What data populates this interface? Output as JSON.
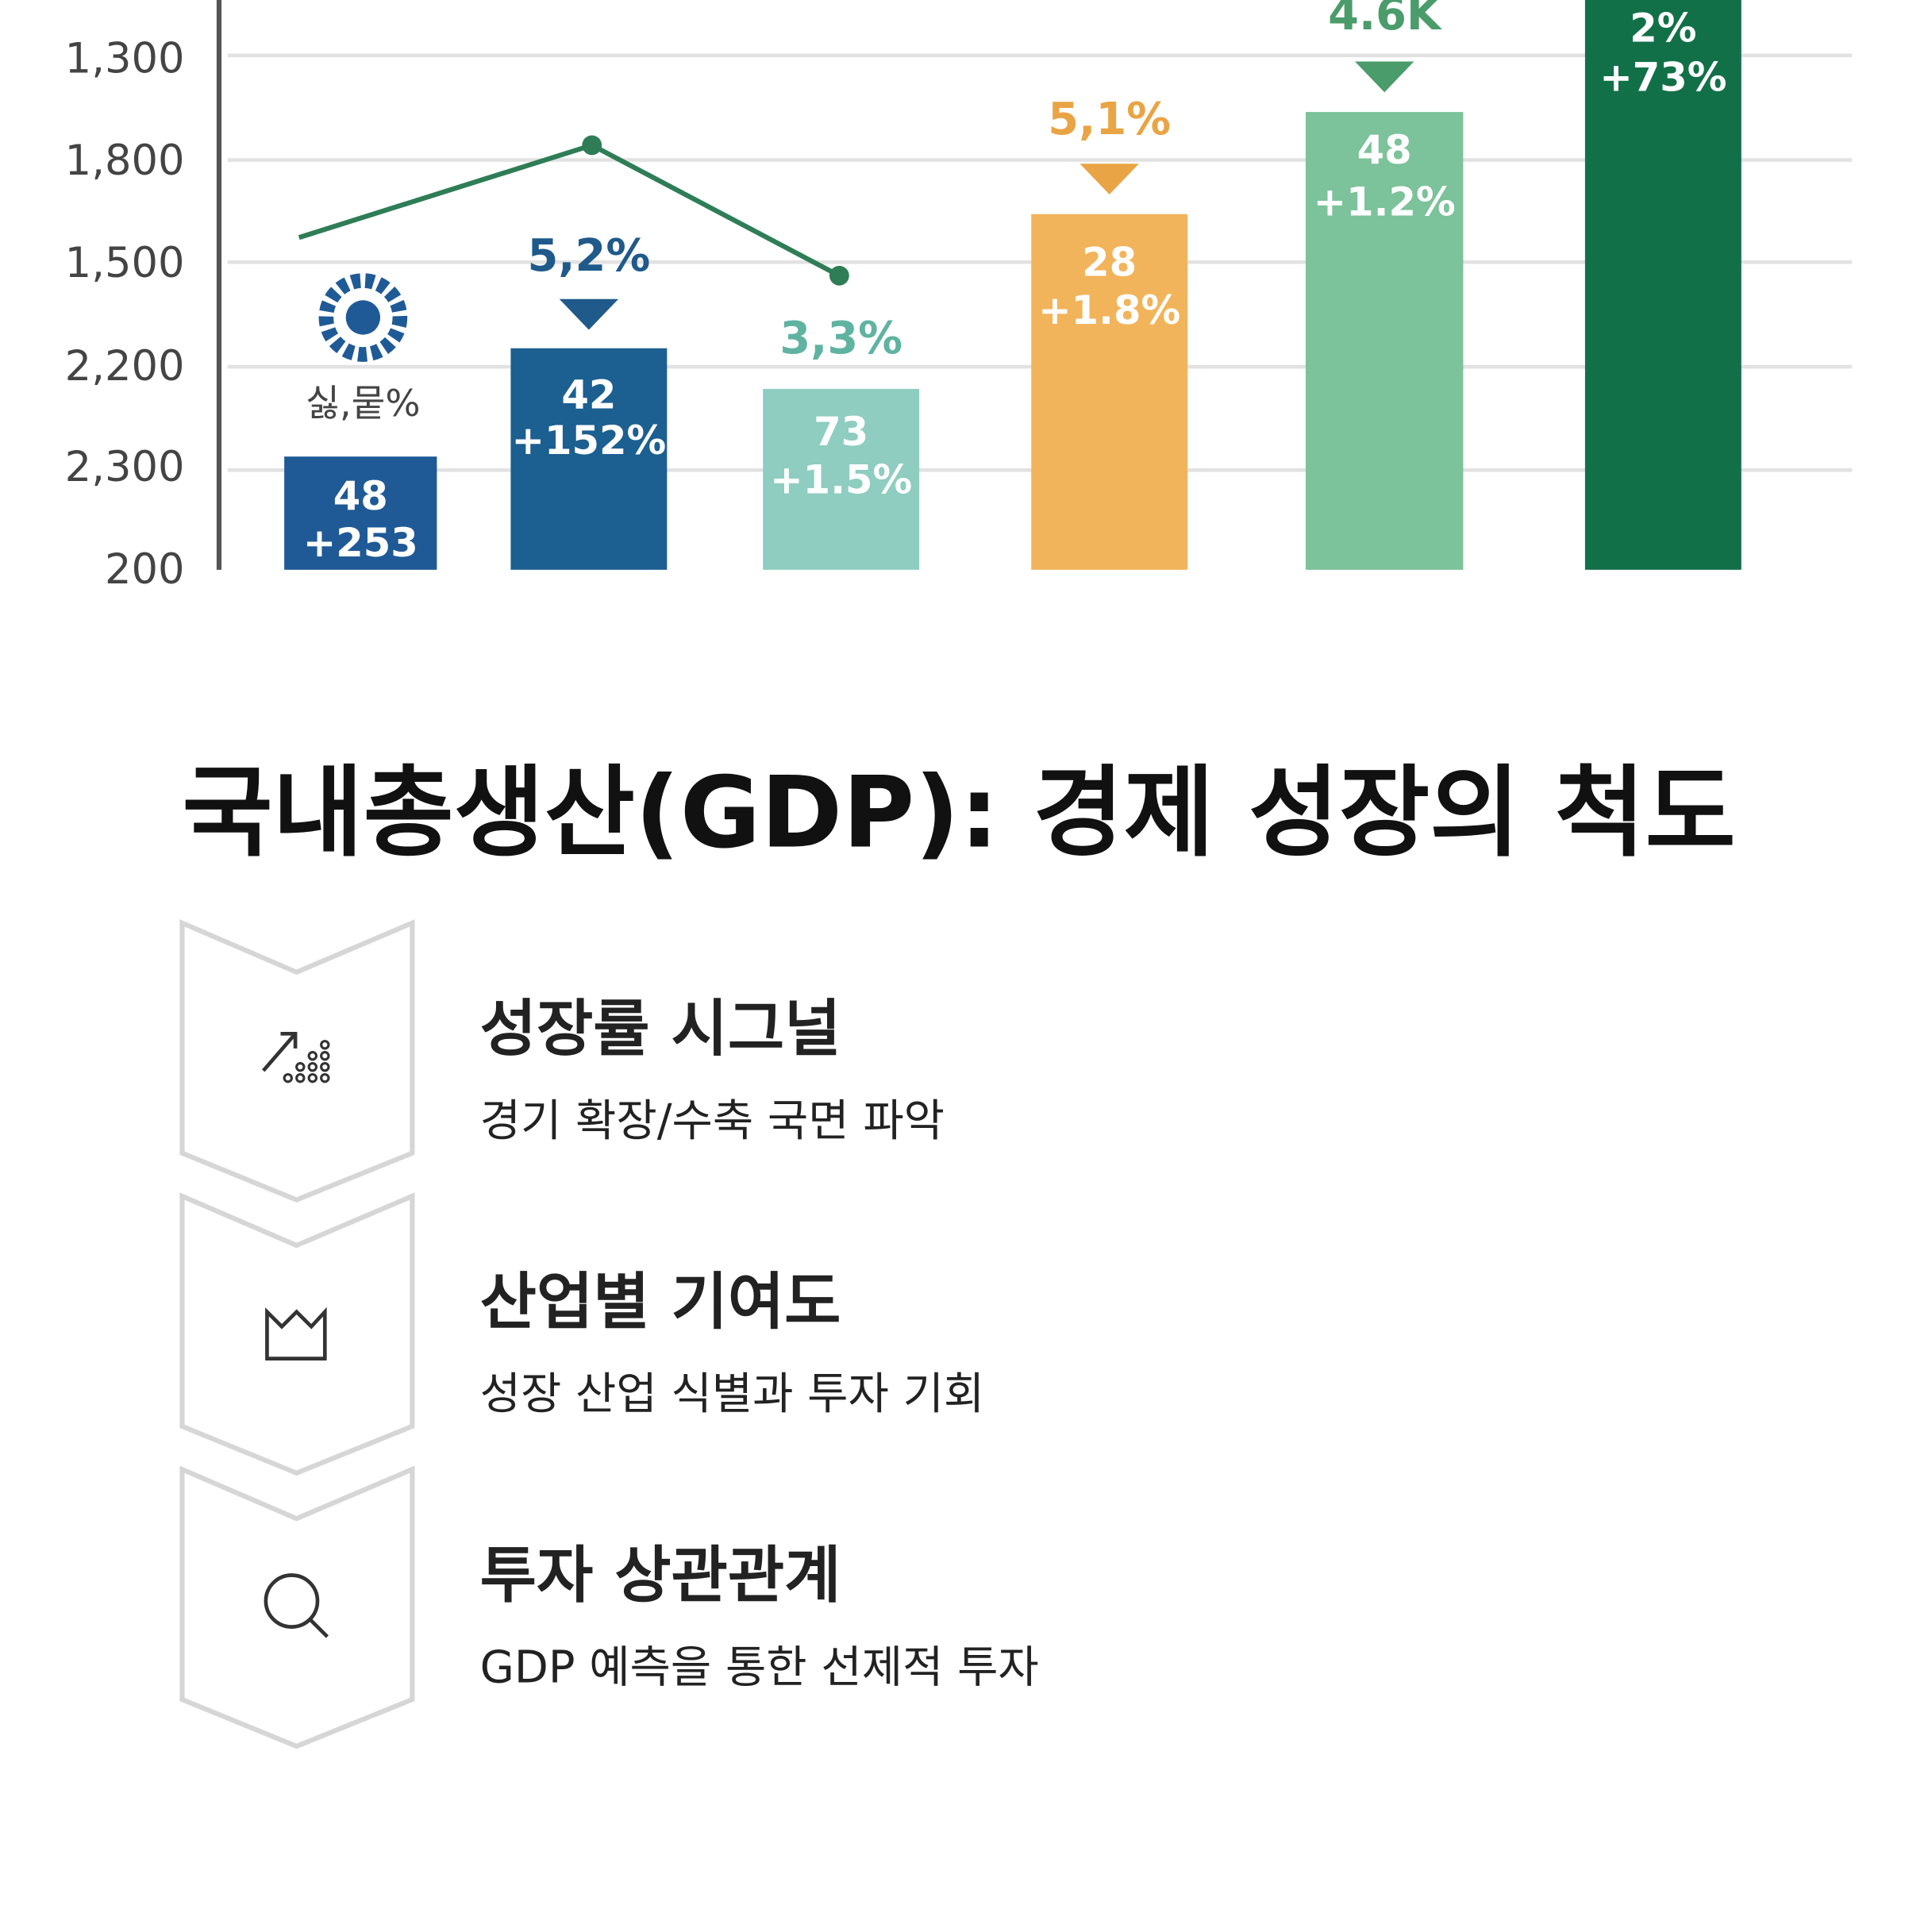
{
  "illustration": {
    "axis_labels": [
      "1,300",
      "1,800",
      "1,500",
      "2,200",
      "2,300",
      "200"
    ],
    "icon_caption": "싫,뭍%",
    "bars": [
      {
        "value": "48",
        "change": "+253"
      },
      {
        "top_label": "5,2%",
        "value": "42",
        "change": "+152%"
      },
      {
        "top_label": "3,3%",
        "value": "73",
        "change": "+1.5%"
      },
      {
        "top_label": "5,1%",
        "value": "28",
        "change": "+1.8%"
      },
      {
        "top_label": "4.6K",
        "value": "48",
        "change": "+1.2%"
      },
      {
        "value": "2%",
        "change": "+73%"
      }
    ]
  },
  "title": "국내총생산(GDP): 경제 성장의 척도",
  "items": [
    {
      "heading": "성장률 시그널",
      "description": "경기 확장/수축 국면 파악"
    },
    {
      "heading": "산업별 기여도",
      "description": "성장 산업 식별과 투자 기회"
    },
    {
      "heading": "투자 상관관계",
      "description": "GDP 예측을 통한 선제적 투자"
    }
  ]
}
